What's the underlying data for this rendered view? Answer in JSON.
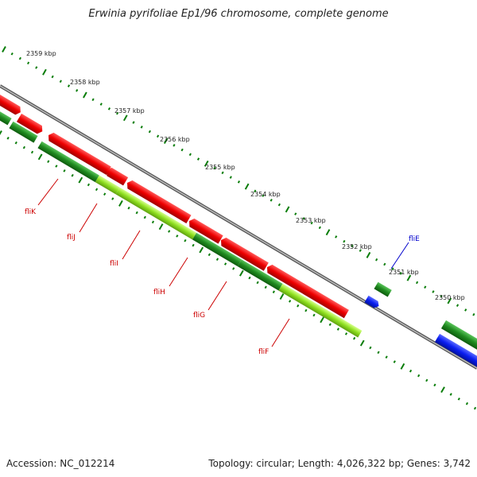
{
  "title": "Erwinia pyrifoliae Ep1/96 chromosome, complete genome",
  "accession": "Accession: NC_012214",
  "summary": "Topology: circular; Length: 4,026,322 bp; Genes: 3,742",
  "colors": {
    "backbone": "#777777",
    "tick": "#0a7d0a",
    "red_feature": "#ee0000",
    "green_dark": "#1f8a1f",
    "green_light": "#8fe020",
    "blue_feature": "#0a1ef0",
    "gene_label": "#cc0000",
    "blue_label": "#0000cc"
  },
  "scale": {
    "unit": "kbp",
    "ticks": [
      "2359 kbp",
      "2358 kbp",
      "2357 kbp",
      "2356 kbp",
      "2355 kbp",
      "2354 kbp",
      "2353 kbp",
      "2352 kbp",
      "2351 kbp",
      "2350 kbp"
    ]
  },
  "genes": [
    {
      "name": "fliK",
      "color": "red"
    },
    {
      "name": "fliJ",
      "color": "red"
    },
    {
      "name": "fliI",
      "color": "red"
    },
    {
      "name": "fliH",
      "color": "red"
    },
    {
      "name": "fliG",
      "color": "red"
    },
    {
      "name": "fliF",
      "color": "red"
    },
    {
      "name": "fliE",
      "color": "blue"
    }
  ]
}
